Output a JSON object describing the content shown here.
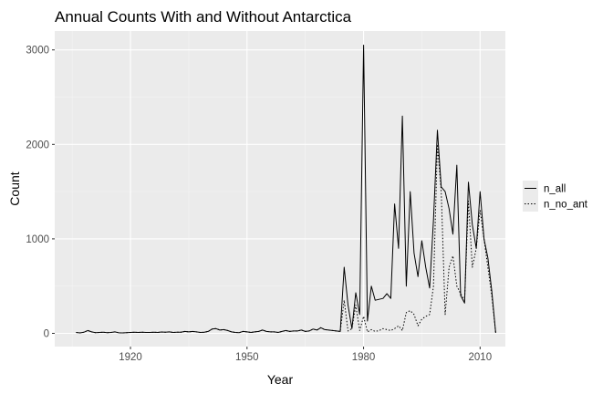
{
  "chart_data": {
    "type": "line",
    "title": "Annual Counts With and Without Antarctica",
    "xlabel": "Year",
    "ylabel": "Count",
    "xlim": [
      1900.5,
      2016.5
    ],
    "ylim": [
      -140,
      3200
    ],
    "xticks": [
      1920,
      1950,
      1980,
      2010
    ],
    "yticks": [
      0,
      1000,
      2000,
      3000
    ],
    "grid": true,
    "legend_position": "right",
    "colors": {
      "panel": "#ebebeb",
      "grid_major": "#ffffff",
      "grid_minor": "#f4f4f4",
      "line": "#000000"
    },
    "series": [
      {
        "name": "n_all",
        "linetype": "solid",
        "x": [
          1906,
          1907,
          1908,
          1909,
          1910,
          1911,
          1912,
          1913,
          1914,
          1915,
          1916,
          1917,
          1918,
          1919,
          1920,
          1921,
          1922,
          1923,
          1924,
          1925,
          1926,
          1927,
          1928,
          1929,
          1930,
          1931,
          1932,
          1933,
          1934,
          1935,
          1936,
          1937,
          1938,
          1939,
          1940,
          1941,
          1942,
          1943,
          1944,
          1945,
          1946,
          1947,
          1948,
          1949,
          1950,
          1951,
          1952,
          1953,
          1954,
          1955,
          1956,
          1957,
          1958,
          1959,
          1960,
          1961,
          1962,
          1963,
          1964,
          1965,
          1966,
          1967,
          1968,
          1969,
          1970,
          1971,
          1972,
          1973,
          1974,
          1975,
          1976,
          1977,
          1978,
          1979,
          1980,
          1981,
          1982,
          1983,
          1984,
          1985,
          1986,
          1987,
          1988,
          1989,
          1990,
          1991,
          1992,
          1993,
          1994,
          1995,
          1996,
          1997,
          1998,
          1999,
          2000,
          2001,
          2002,
          2003,
          2004,
          2005,
          2006,
          2007,
          2008,
          2009,
          2010,
          2011,
          2012,
          2013,
          2014
        ],
        "y": [
          10,
          5,
          12,
          30,
          15,
          8,
          10,
          12,
          8,
          10,
          15,
          6,
          5,
          8,
          10,
          12,
          10,
          12,
          10,
          10,
          12,
          10,
          14,
          12,
          15,
          10,
          12,
          12,
          20,
          15,
          20,
          15,
          10,
          12,
          20,
          45,
          50,
          35,
          40,
          30,
          15,
          10,
          8,
          20,
          15,
          10,
          15,
          20,
          35,
          20,
          15,
          15,
          10,
          20,
          30,
          20,
          25,
          25,
          35,
          20,
          25,
          45,
          35,
          60,
          40,
          35,
          30,
          25,
          20,
          700,
          300,
          50,
          430,
          200,
          3050,
          130,
          500,
          350,
          360,
          370,
          420,
          370,
          1370,
          900,
          2300,
          500,
          1500,
          850,
          600,
          980,
          700,
          480,
          1200,
          2150,
          1550,
          1500,
          1320,
          1050,
          1780,
          400,
          320,
          1600,
          1150,
          900,
          1500,
          1000,
          800,
          450,
          5
        ]
      },
      {
        "name": "n_no_ant",
        "linetype": "dotted",
        "x": [
          1906,
          1907,
          1908,
          1909,
          1910,
          1911,
          1912,
          1913,
          1914,
          1915,
          1916,
          1917,
          1918,
          1919,
          1920,
          1921,
          1922,
          1923,
          1924,
          1925,
          1926,
          1927,
          1928,
          1929,
          1930,
          1931,
          1932,
          1933,
          1934,
          1935,
          1936,
          1937,
          1938,
          1939,
          1940,
          1941,
          1942,
          1943,
          1944,
          1945,
          1946,
          1947,
          1948,
          1949,
          1950,
          1951,
          1952,
          1953,
          1954,
          1955,
          1956,
          1957,
          1958,
          1959,
          1960,
          1961,
          1962,
          1963,
          1964,
          1965,
          1966,
          1967,
          1968,
          1969,
          1970,
          1971,
          1972,
          1973,
          1974,
          1975,
          1976,
          1977,
          1978,
          1979,
          1980,
          1981,
          1982,
          1983,
          1984,
          1985,
          1986,
          1987,
          1988,
          1989,
          1990,
          1991,
          1992,
          1993,
          1994,
          1995,
          1996,
          1997,
          1998,
          1999,
          2000,
          2001,
          2002,
          2003,
          2004,
          2005,
          2006,
          2007,
          2008,
          2009,
          2010,
          2011,
          2012,
          2013,
          2014
        ],
        "y": [
          10,
          5,
          12,
          30,
          15,
          8,
          10,
          12,
          8,
          10,
          15,
          6,
          5,
          8,
          10,
          12,
          10,
          12,
          10,
          10,
          12,
          10,
          14,
          12,
          15,
          10,
          12,
          12,
          20,
          15,
          20,
          15,
          10,
          12,
          20,
          45,
          50,
          35,
          40,
          30,
          15,
          10,
          8,
          20,
          15,
          10,
          15,
          20,
          35,
          20,
          15,
          15,
          10,
          20,
          30,
          20,
          25,
          25,
          35,
          20,
          25,
          45,
          35,
          60,
          40,
          35,
          30,
          25,
          20,
          350,
          25,
          50,
          300,
          30,
          180,
          15,
          40,
          20,
          30,
          50,
          40,
          30,
          50,
          80,
          30,
          220,
          240,
          200,
          80,
          150,
          180,
          200,
          500,
          2000,
          1500,
          200,
          700,
          820,
          500,
          420,
          350,
          1400,
          700,
          900,
          1300,
          1000,
          700,
          400,
          5
        ]
      }
    ]
  }
}
